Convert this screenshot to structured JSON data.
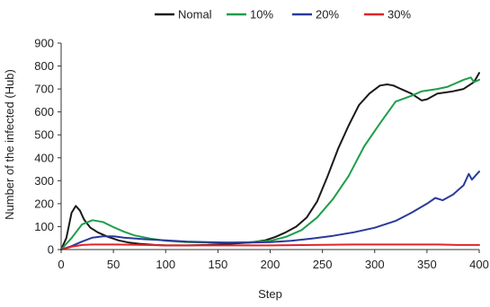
{
  "chart_data": {
    "type": "line",
    "title": "",
    "xlabel": "Step",
    "ylabel": "Number of the infected (Hub)",
    "xlim": [
      0,
      400
    ],
    "ylim": [
      0,
      900
    ],
    "xticks": [
      "0",
      "50",
      "100",
      "150",
      "200",
      "250",
      "300",
      "350",
      "400"
    ],
    "yticks": [
      "0",
      "100",
      "200",
      "300",
      "400",
      "500",
      "600",
      "700",
      "800",
      "900"
    ],
    "grid": false,
    "legend_position": "top",
    "series": [
      {
        "name": "Nomal",
        "color": "#1a1a1a",
        "x": [
          0,
          5,
          10,
          14,
          18,
          22,
          28,
          35,
          45,
          55,
          65,
          75,
          90,
          100,
          120,
          140,
          160,
          180,
          195,
          205,
          215,
          225,
          235,
          245,
          255,
          265,
          275,
          285,
          295,
          305,
          312,
          318,
          325,
          335,
          345,
          350,
          360,
          375,
          385,
          395,
          400
        ],
        "y": [
          0,
          50,
          160,
          190,
          170,
          130,
          95,
          75,
          55,
          40,
          30,
          25,
          20,
          18,
          18,
          20,
          25,
          30,
          40,
          55,
          75,
          100,
          140,
          210,
          320,
          440,
          540,
          630,
          680,
          715,
          720,
          715,
          700,
          680,
          650,
          655,
          680,
          690,
          700,
          730,
          770
        ]
      },
      {
        "name": "10%",
        "color": "#1f9e4a",
        "x": [
          0,
          10,
          20,
          30,
          40,
          50,
          60,
          70,
          85,
          100,
          120,
          140,
          160,
          180,
          200,
          215,
          230,
          245,
          260,
          275,
          290,
          305,
          320,
          335,
          345,
          360,
          370,
          385,
          392,
          395,
          400
        ],
        "y": [
          0,
          50,
          110,
          128,
          120,
          98,
          78,
          62,
          48,
          38,
          32,
          30,
          30,
          32,
          38,
          55,
          85,
          140,
          220,
          320,
          450,
          550,
          645,
          670,
          690,
          700,
          710,
          740,
          750,
          730,
          740
        ]
      },
      {
        "name": "20%",
        "color": "#2a3a9a",
        "x": [
          0,
          10,
          20,
          30,
          40,
          50,
          60,
          80,
          100,
          120,
          140,
          160,
          180,
          200,
          220,
          240,
          260,
          280,
          300,
          320,
          335,
          350,
          358,
          365,
          375,
          385,
          390,
          393,
          400
        ],
        "y": [
          0,
          15,
          35,
          52,
          58,
          58,
          52,
          45,
          40,
          35,
          32,
          30,
          30,
          32,
          38,
          48,
          60,
          75,
          95,
          125,
          160,
          200,
          225,
          215,
          240,
          280,
          330,
          305,
          340
        ]
      },
      {
        "name": "30%",
        "color": "#e0242a",
        "x": [
          0,
          10,
          20,
          30,
          50,
          80,
          100,
          130,
          160,
          200,
          240,
          280,
          300,
          330,
          360,
          380,
          400
        ],
        "y": [
          0,
          12,
          20,
          22,
          22,
          20,
          18,
          18,
          18,
          18,
          20,
          22,
          22,
          22,
          22,
          20,
          20
        ]
      }
    ]
  }
}
